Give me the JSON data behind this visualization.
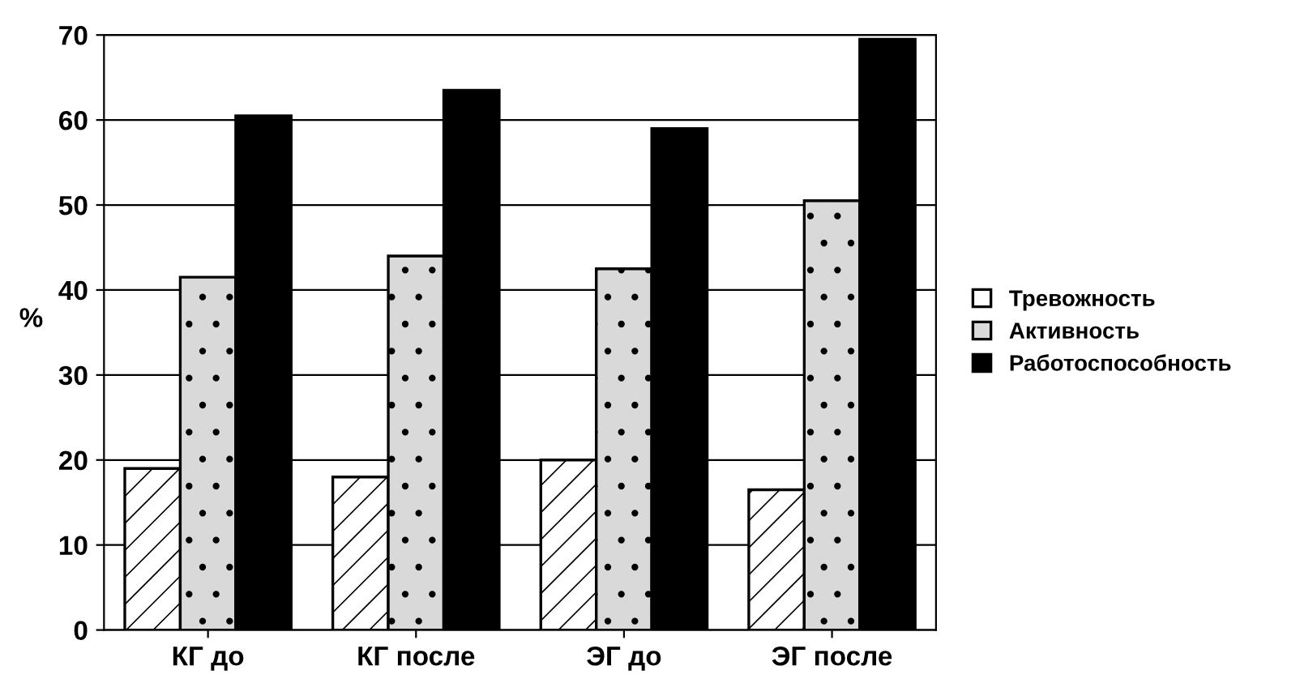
{
  "chart_data": {
    "type": "bar",
    "ylabel": "%",
    "categories": [
      "КГ до",
      "КГ после",
      "ЭГ до",
      "ЭГ после"
    ],
    "series": [
      {
        "name": "Тревожность",
        "color": "#ffffff",
        "values": [
          19,
          18,
          20,
          16.5
        ]
      },
      {
        "name": "Активность",
        "color": "#d9d9d9",
        "values": [
          41.5,
          44,
          42.5,
          50.5
        ]
      },
      {
        "name": "Работоспособность",
        "color": "#000000",
        "values": [
          60.5,
          63.5,
          59,
          69.5
        ]
      }
    ],
    "ylim": [
      0,
      70
    ],
    "yticks": [
      0,
      10,
      20,
      30,
      40,
      50,
      60,
      70
    ],
    "grid": "y",
    "legend": "right"
  }
}
